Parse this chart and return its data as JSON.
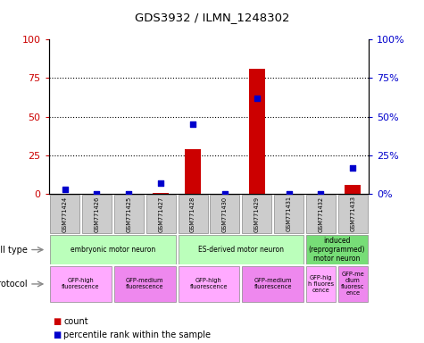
{
  "title": "GDS3932 / ILMN_1248302",
  "samples": [
    "GSM771424",
    "GSM771426",
    "GSM771425",
    "GSM771427",
    "GSM771428",
    "GSM771430",
    "GSM771429",
    "GSM771431",
    "GSM771432",
    "GSM771433"
  ],
  "count_values": [
    0,
    0,
    0,
    0.5,
    29,
    0,
    81,
    0,
    0,
    6
  ],
  "percentile_values": [
    3,
    0,
    0,
    7,
    45,
    0,
    62,
    0,
    0,
    17
  ],
  "ylim": [
    0,
    100
  ],
  "yticks": [
    0,
    25,
    50,
    75,
    100
  ],
  "bar_color": "#cc0000",
  "dot_color": "#0000cc",
  "cell_type_groups": [
    {
      "label": "embryonic motor neuron",
      "start": 0,
      "end": 4,
      "color": "#bbffbb"
    },
    {
      "label": "ES-derived motor neuron",
      "start": 4,
      "end": 8,
      "color": "#bbffbb"
    },
    {
      "label": "induced\n(reprogrammed)\nmotor neuron",
      "start": 8,
      "end": 10,
      "color": "#77dd77"
    }
  ],
  "protocol_groups": [
    {
      "label": "GFP-high\nfluorescence",
      "start": 0,
      "end": 2,
      "color": "#ffaaff"
    },
    {
      "label": "GFP-medium\nfluorescence",
      "start": 2,
      "end": 4,
      "color": "#ee88ee"
    },
    {
      "label": "GFP-high\nfluorescence",
      "start": 4,
      "end": 6,
      "color": "#ffaaff"
    },
    {
      "label": "GFP-medium\nfluorescence",
      "start": 6,
      "end": 8,
      "color": "#ee88ee"
    },
    {
      "label": "GFP-hig\nh fluores\ncence",
      "start": 8,
      "end": 9,
      "color": "#ffaaff"
    },
    {
      "label": "GFP-me\ndium\nfluoresc\nence",
      "start": 9,
      "end": 10,
      "color": "#ee88ee"
    }
  ],
  "legend_count_label": "count",
  "legend_pct_label": "percentile rank within the sample",
  "cell_type_label": "cell type",
  "protocol_label": "protocol",
  "tick_color_left": "#cc0000",
  "tick_color_right": "#0000cc",
  "sample_box_color": "#cccccc"
}
